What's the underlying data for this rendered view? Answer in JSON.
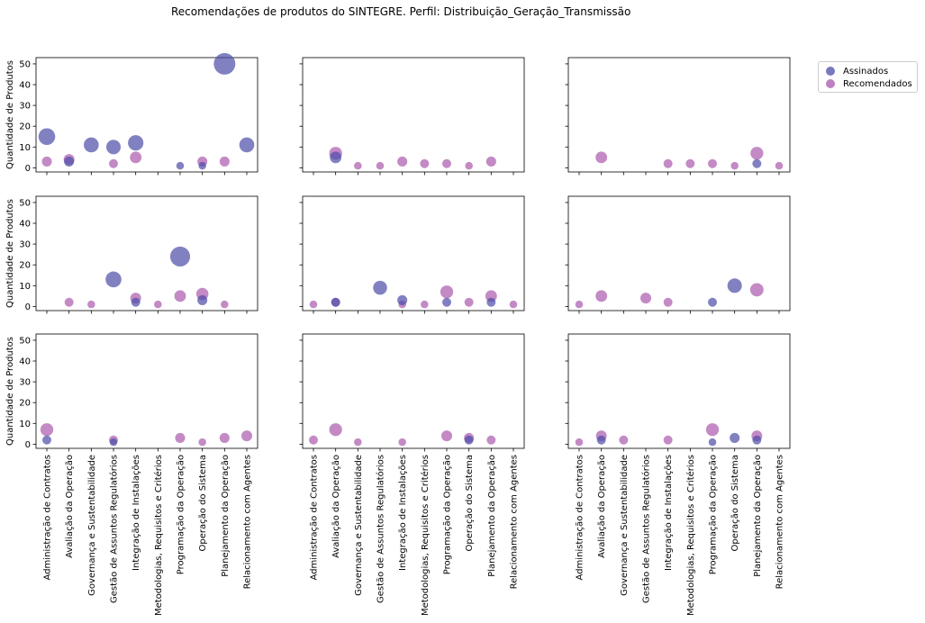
{
  "title": "Recomendações de produtos do SINTEGRE. Perfil: Distribuição_Geração_Transmissão",
  "legend": {
    "assinados": "Assinados",
    "recomendados": "Recomendados"
  },
  "colors": {
    "assinados": "#4b4ba8",
    "recomendados": "#9b3c9e"
  },
  "chart_data": {
    "type": "scatter",
    "title": "Recomendações de produtos do SINTEGRE. Perfil: Distribuição_Geração_Transmissão",
    "ylabel": "Quantidade de Produtos",
    "ylim": [
      -2,
      53
    ],
    "yticks": [
      0,
      10,
      20,
      30,
      40,
      50
    ],
    "categories": [
      "Administração de Contratos",
      "Avaliação da Operação",
      "Governança e Sustentabilidade",
      "Gestão de Assuntos Regulatórios",
      "Integração de Instalações",
      "Metodologias, Requisitos e Critérios",
      "Programação da Operação",
      "Operação do Sistema",
      "Planejamento da Operação",
      "Relacionamento com Agentes"
    ],
    "legend_position": "outside-top-right",
    "grid": false,
    "series_names": [
      "Assinados",
      "Recomendados"
    ],
    "panels": [
      {
        "assinados": [
          [
            0,
            15
          ],
          [
            1,
            3
          ],
          [
            2,
            11
          ],
          [
            3,
            10
          ],
          [
            4,
            12
          ],
          [
            6,
            1
          ],
          [
            7,
            1
          ],
          [
            8,
            50
          ],
          [
            9,
            11
          ]
        ],
        "recomendados": [
          [
            0,
            3
          ],
          [
            1,
            4
          ],
          [
            3,
            2
          ],
          [
            4,
            5
          ],
          [
            7,
            3
          ],
          [
            8,
            3
          ]
        ]
      },
      {
        "assinados": [
          [
            1,
            5
          ]
        ],
        "recomendados": [
          [
            1,
            7
          ],
          [
            2,
            1
          ],
          [
            3,
            1
          ],
          [
            4,
            3
          ],
          [
            5,
            2
          ],
          [
            6,
            2
          ],
          [
            7,
            1
          ],
          [
            8,
            3
          ]
        ]
      },
      {
        "assinados": [
          [
            8,
            2
          ]
        ],
        "recomendados": [
          [
            1,
            5
          ],
          [
            4,
            2
          ],
          [
            5,
            2
          ],
          [
            6,
            2
          ],
          [
            7,
            1
          ],
          [
            8,
            7
          ],
          [
            9,
            1
          ]
        ]
      },
      {
        "assinados": [
          [
            3,
            13
          ],
          [
            4,
            2
          ],
          [
            6,
            24
          ],
          [
            7,
            3
          ]
        ],
        "recomendados": [
          [
            1,
            2
          ],
          [
            2,
            1
          ],
          [
            4,
            4
          ],
          [
            5,
            1
          ],
          [
            6,
            5
          ],
          [
            7,
            6
          ],
          [
            8,
            1
          ]
        ]
      },
      {
        "assinados": [
          [
            1,
            2
          ],
          [
            3,
            9
          ],
          [
            4,
            3
          ],
          [
            6,
            2
          ],
          [
            8,
            2
          ]
        ],
        "recomendados": [
          [
            0,
            1
          ],
          [
            1,
            2
          ],
          [
            4,
            1
          ],
          [
            5,
            1
          ],
          [
            6,
            7
          ],
          [
            7,
            2
          ],
          [
            8,
            5
          ],
          [
            9,
            1
          ]
        ]
      },
      {
        "assinados": [
          [
            6,
            2
          ],
          [
            7,
            10
          ]
        ],
        "recomendados": [
          [
            0,
            1
          ],
          [
            1,
            5
          ],
          [
            3,
            4
          ],
          [
            4,
            2
          ],
          [
            8,
            8
          ]
        ]
      },
      {
        "assinados": [
          [
            0,
            2
          ],
          [
            3,
            1
          ]
        ],
        "recomendados": [
          [
            0,
            7
          ],
          [
            3,
            2
          ],
          [
            6,
            3
          ],
          [
            7,
            1
          ],
          [
            8,
            3
          ],
          [
            9,
            4
          ]
        ]
      },
      {
        "assinados": [
          [
            7,
            2
          ]
        ],
        "recomendados": [
          [
            0,
            2
          ],
          [
            1,
            7
          ],
          [
            2,
            1
          ],
          [
            4,
            1
          ],
          [
            6,
            4
          ],
          [
            7,
            3
          ],
          [
            8,
            2
          ]
        ]
      },
      {
        "assinados": [
          [
            1,
            2
          ],
          [
            6,
            1
          ],
          [
            7,
            3
          ],
          [
            8,
            2
          ]
        ],
        "recomendados": [
          [
            0,
            1
          ],
          [
            1,
            4
          ],
          [
            2,
            2
          ],
          [
            4,
            2
          ],
          [
            6,
            7
          ],
          [
            8,
            4
          ]
        ]
      }
    ]
  }
}
